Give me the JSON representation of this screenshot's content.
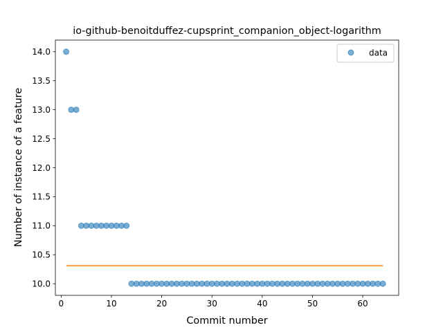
{
  "chart_data": {
    "type": "scatter",
    "title": "io-github-benoitduffez-cupsprint_companion_object-logarithm",
    "xlabel": "Commit number",
    "ylabel": "Number of instance of a feature",
    "xlim": [
      -1.15,
      67.15
    ],
    "ylim": [
      9.8,
      14.2
    ],
    "xticks": [
      0,
      10,
      20,
      30,
      40,
      50,
      60
    ],
    "xtick_labels": [
      "0",
      "10",
      "20",
      "30",
      "40",
      "50",
      "60"
    ],
    "yticks": [
      10.0,
      10.5,
      11.0,
      11.5,
      12.0,
      12.5,
      13.0,
      13.5,
      14.0
    ],
    "ytick_labels": [
      "10.0",
      "10.5",
      "11.0",
      "11.5",
      "12.0",
      "12.5",
      "13.0",
      "13.5",
      "14.0"
    ],
    "grid": false,
    "legend_position": "top-right",
    "series": [
      {
        "name": "data",
        "kind": "scatter",
        "color": "#1f77b4",
        "x": [
          1,
          2,
          3,
          4,
          5,
          6,
          7,
          8,
          9,
          10,
          11,
          12,
          13,
          14,
          15,
          16,
          17,
          18,
          19,
          20,
          21,
          22,
          23,
          24,
          25,
          26,
          27,
          28,
          29,
          30,
          31,
          32,
          33,
          34,
          35,
          36,
          37,
          38,
          39,
          40,
          41,
          42,
          43,
          44,
          45,
          46,
          47,
          48,
          49,
          50,
          51,
          52,
          53,
          54,
          55,
          56,
          57,
          58,
          59,
          60,
          61,
          62,
          63,
          64
        ],
        "y": [
          14,
          13,
          13,
          11,
          11,
          11,
          11,
          11,
          11,
          11,
          11,
          11,
          11,
          10,
          10,
          10,
          10,
          10,
          10,
          10,
          10,
          10,
          10,
          10,
          10,
          10,
          10,
          10,
          10,
          10,
          10,
          10,
          10,
          10,
          10,
          10,
          10,
          10,
          10,
          10,
          10,
          10,
          10,
          10,
          10,
          10,
          10,
          10,
          10,
          10,
          10,
          10,
          10,
          10,
          10,
          10,
          10,
          10,
          10,
          10,
          10,
          10,
          10,
          10
        ]
      },
      {
        "kind": "line",
        "color": "#ff7f0e",
        "x": [
          1,
          64
        ],
        "y": [
          10.31,
          10.31
        ]
      }
    ]
  }
}
